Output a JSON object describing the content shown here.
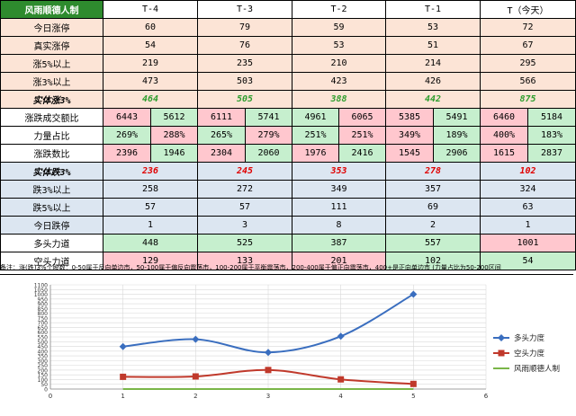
{
  "table": {
    "title": "风雨顺德人制",
    "headers": [
      "T-4",
      "T-3",
      "T-2",
      "T-1",
      "T（今天）"
    ],
    "rows_top": [
      {
        "label": "今日涨停",
        "values": [
          "60",
          "79",
          "59",
          "53",
          "72"
        ]
      },
      {
        "label": "真实涨停",
        "values": [
          "54",
          "76",
          "53",
          "51",
          "67"
        ]
      },
      {
        "label": "涨5%以上",
        "values": [
          "219",
          "235",
          "210",
          "214",
          "295"
        ]
      },
      {
        "label": "涨3%以上",
        "values": [
          "473",
          "503",
          "423",
          "426",
          "566"
        ]
      },
      {
        "label": "实体涨3%",
        "values": [
          "464",
          "505",
          "388",
          "442",
          "875"
        ]
      }
    ],
    "pair_rows": [
      {
        "label": "涨跌成交额比",
        "values": [
          [
            "6443",
            "5612"
          ],
          [
            "6111",
            "5741"
          ],
          [
            "4961",
            "6065"
          ],
          [
            "5385",
            "5491"
          ],
          [
            "6460",
            "5184"
          ]
        ]
      },
      {
        "label": "力量占比",
        "values": [
          [
            "269%",
            "288%"
          ],
          [
            "265%",
            "279%"
          ],
          [
            "251%",
            "251%"
          ],
          [
            "349%",
            "189%"
          ],
          [
            "400%",
            "183%"
          ]
        ]
      },
      {
        "label": "涨跌数比",
        "values": [
          [
            "2396",
            "1946"
          ],
          [
            "2304",
            "2060"
          ],
          [
            "1976",
            "2416"
          ],
          [
            "1545",
            "2906"
          ],
          [
            "1615",
            "2837"
          ]
        ]
      }
    ],
    "rows_bottom": [
      {
        "label": "实体跌3%",
        "values": [
          "236",
          "245",
          "353",
          "278",
          "102"
        ]
      },
      {
        "label": "跌3%以上",
        "values": [
          "258",
          "272",
          "349",
          "357",
          "324"
        ]
      },
      {
        "label": "跌5%以上",
        "values": [
          "57",
          "57",
          "111",
          "69",
          "63"
        ]
      },
      {
        "label": "今日跌停",
        "values": [
          "1",
          "3",
          "8",
          "2",
          "1"
        ]
      }
    ],
    "force_rows": [
      {
        "label": "多头力道",
        "values": [
          "448",
          "525",
          "387",
          "557",
          "1001"
        ]
      },
      {
        "label": "空头力道",
        "values": [
          "129",
          "133",
          "201",
          "102",
          "54"
        ]
      }
    ],
    "note": "备注：涨(跌)3%个股数：0-50属于反向单边市，50-100属于偏反向震荡市，100-200属于平衡震荡市，200-400属于偏正向震荡市，400+是正向单边市 (力量占比为50-200区间"
  },
  "colors": {
    "title_green": "#2e8b2e",
    "peach": "#fce4d6",
    "blue": "#dce6f1",
    "green_cell": "#c6efce",
    "pink_cell": "#ffc7ce",
    "bull_line": "#3a6ebf",
    "bear_line": "#c0392b",
    "zero_line": "#7ab648"
  },
  "chart_data": {
    "type": "line",
    "x": [
      1,
      2,
      3,
      4,
      5
    ],
    "series": [
      {
        "name": "多头力度",
        "values": [
          448,
          525,
          387,
          557,
          1001
        ],
        "color": "#3a6ebf",
        "marker": "diamond"
      },
      {
        "name": "空头力度",
        "values": [
          129,
          133,
          201,
          102,
          54
        ],
        "color": "#c0392b",
        "marker": "square"
      },
      {
        "name": "风雨顺德人制",
        "values": [
          0,
          0,
          0,
          0,
          0
        ],
        "color": "#7ab648",
        "marker": "none"
      }
    ],
    "xlim": [
      0,
      6
    ],
    "ylim": [
      0,
      1100
    ],
    "xticks": [
      "0",
      "1",
      "2",
      "3",
      "4",
      "5",
      "6"
    ],
    "yticks": [
      "0",
      "50",
      "100",
      "150",
      "200",
      "250",
      "300",
      "350",
      "400",
      "450",
      "500",
      "550",
      "600",
      "650",
      "700",
      "750",
      "800",
      "850",
      "900",
      "950",
      "1000",
      "1050",
      "1100"
    ],
    "grid": true,
    "legend": "right"
  }
}
